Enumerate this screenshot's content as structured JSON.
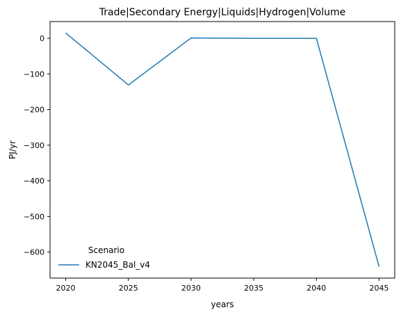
{
  "chart_data": {
    "type": "line",
    "title": "Trade|Secondary Energy|Liquids|Hydrogen|Volume",
    "xlabel": "years",
    "ylabel": "PJ/yr",
    "x": [
      2020,
      2025,
      2030,
      2035,
      2040,
      2045
    ],
    "series": [
      {
        "name": "KN2045_Bal_v4",
        "color": "#1f77b4",
        "values": [
          15,
          -131,
          1,
          0,
          0,
          -641
        ]
      }
    ],
    "xlim": [
      2018.75,
      2046.25
    ],
    "ylim": [
      -673,
      47
    ],
    "xticks": [
      2020,
      2025,
      2030,
      2035,
      2040,
      2045
    ],
    "yticks": [
      0,
      -100,
      -200,
      -300,
      -400,
      -500,
      -600
    ],
    "ytick_labels": [
      "0",
      "−100",
      "−200",
      "−300",
      "−400",
      "−500",
      "−600"
    ],
    "legend": {
      "title": "Scenario",
      "placement": "lower-left"
    },
    "grid": false
  }
}
